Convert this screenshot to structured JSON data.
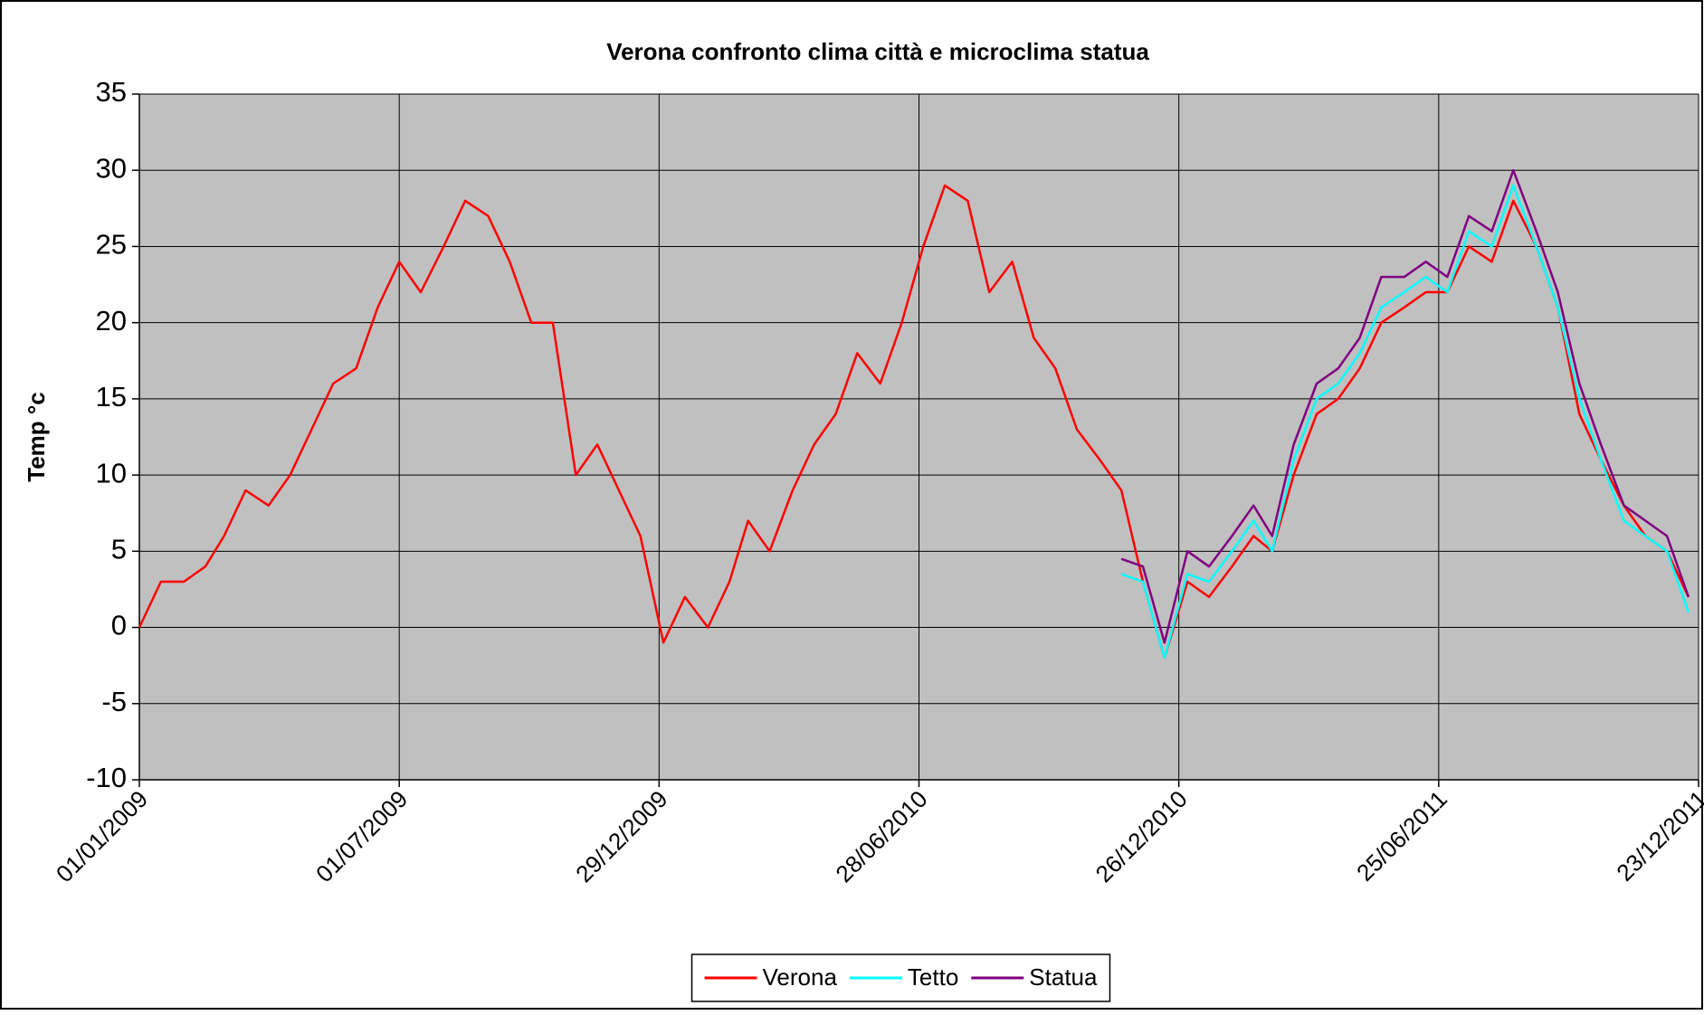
{
  "chart_data": {
    "type": "line",
    "title": "Verona confronto clima città e microclima statua",
    "y_label": "Temp °c",
    "x": [
      "01/01/2009",
      "16/01/2009",
      "01/02/2009",
      "16/02/2009",
      "01/03/2009",
      "16/03/2009",
      "01/04/2009",
      "16/04/2009",
      "01/05/2009",
      "16/05/2009",
      "01/06/2009",
      "16/06/2009",
      "01/07/2009",
      "16/07/2009",
      "01/08/2009",
      "16/08/2009",
      "01/09/2009",
      "16/09/2009",
      "01/10/2009",
      "16/10/2009",
      "01/11/2009",
      "16/11/2009",
      "01/12/2009",
      "16/12/2009",
      "01/01/2010",
      "16/01/2010",
      "01/02/2010",
      "16/02/2010",
      "01/03/2010",
      "16/03/2010",
      "01/04/2010",
      "16/04/2010",
      "01/05/2010",
      "16/05/2010",
      "01/06/2010",
      "16/06/2010",
      "01/07/2010",
      "16/07/2010",
      "01/08/2010",
      "16/08/2010",
      "01/09/2010",
      "16/09/2010",
      "01/10/2010",
      "16/10/2010",
      "01/11/2010",
      "16/11/2010",
      "01/12/2010",
      "16/12/2010",
      "01/01/2011",
      "16/01/2011",
      "01/02/2011",
      "16/02/2011",
      "01/03/2011",
      "16/03/2011",
      "01/04/2011",
      "16/04/2011",
      "01/05/2011",
      "16/05/2011",
      "01/06/2011",
      "16/06/2011",
      "01/07/2011",
      "16/07/2011",
      "01/08/2011",
      "16/08/2011",
      "01/09/2011",
      "16/09/2011",
      "01/10/2011",
      "16/10/2011",
      "01/11/2011",
      "16/11/2011",
      "01/12/2011",
      "16/12/2011"
    ],
    "series": [
      {
        "name": "Verona",
        "color": "#ff0000",
        "values": [
          0,
          3,
          3,
          4,
          6,
          9,
          8,
          10,
          13,
          16,
          17,
          21,
          24,
          22,
          25,
          28,
          27,
          24,
          20,
          20,
          10,
          12,
          9,
          6,
          -1,
          2,
          0,
          3,
          7,
          5,
          9,
          12,
          14,
          18,
          16,
          20,
          25,
          29,
          28,
          22,
          24,
          19,
          17,
          13,
          11,
          9,
          3,
          -2,
          3,
          2,
          4,
          6,
          5,
          10,
          14,
          15,
          17,
          20,
          21,
          22,
          22,
          25,
          24,
          28,
          25,
          21,
          14,
          11,
          8,
          6,
          5,
          2
        ]
      },
      {
        "name": "Tetto",
        "color": "#00ffff",
        "values": [
          null,
          null,
          null,
          null,
          null,
          null,
          null,
          null,
          null,
          null,
          null,
          null,
          null,
          null,
          null,
          null,
          null,
          null,
          null,
          null,
          null,
          null,
          null,
          null,
          null,
          null,
          null,
          null,
          null,
          null,
          null,
          null,
          null,
          null,
          null,
          null,
          null,
          null,
          null,
          null,
          null,
          null,
          null,
          null,
          null,
          3.5,
          3,
          -2,
          3.5,
          3,
          5,
          7,
          5,
          11,
          15,
          16,
          18,
          21,
          22,
          23,
          22,
          26,
          25,
          29,
          25,
          21,
          15,
          11,
          7,
          6,
          5,
          1
        ]
      },
      {
        "name": "Statua",
        "color": "#800080",
        "values": [
          null,
          null,
          null,
          null,
          null,
          null,
          null,
          null,
          null,
          null,
          null,
          null,
          null,
          null,
          null,
          null,
          null,
          null,
          null,
          null,
          null,
          null,
          null,
          null,
          null,
          null,
          null,
          null,
          null,
          null,
          null,
          null,
          null,
          null,
          null,
          null,
          null,
          null,
          null,
          null,
          null,
          null,
          null,
          null,
          null,
          4.5,
          4,
          -1,
          5,
          4,
          6,
          8,
          6,
          12,
          16,
          17,
          19,
          23,
          23,
          24,
          23,
          27,
          26,
          30,
          26,
          22,
          16,
          12,
          8,
          7,
          6,
          2
        ]
      }
    ],
    "xlim": [
      "01/01/2009",
      "23/12/2011"
    ],
    "xticks": [
      "01/01/2009",
      "01/07/2009",
      "29/12/2009",
      "28/06/2010",
      "26/12/2010",
      "25/06/2011",
      "23/12/2011"
    ],
    "ylim": [
      -10,
      35
    ],
    "yticks": [
      -10,
      -5,
      0,
      5,
      10,
      15,
      20,
      25,
      30,
      35
    ],
    "grid": true,
    "legend": "bottom"
  }
}
